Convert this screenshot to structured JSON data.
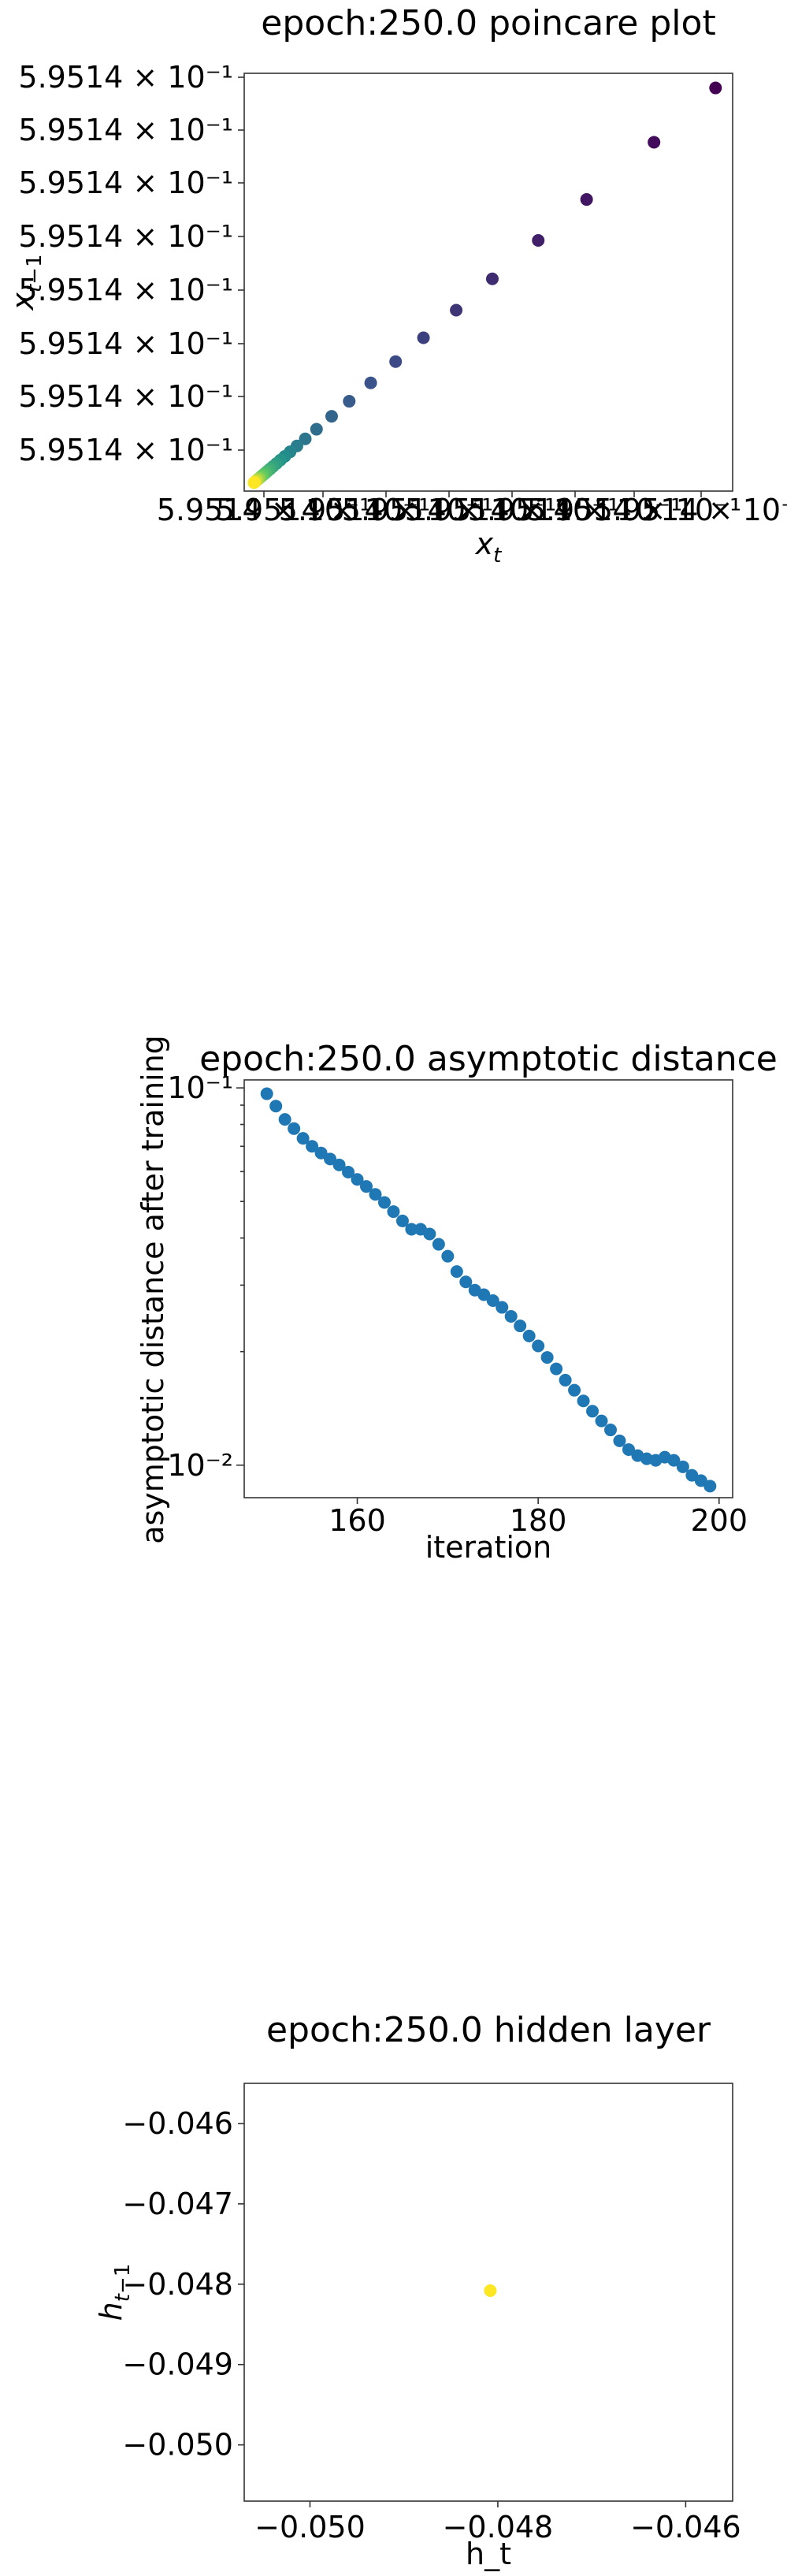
{
  "chart_data": [
    {
      "type": "scatter",
      "title": "epoch:250.0 poincare plot",
      "xlabel": "x_t",
      "ylabel": "x_{t-1}",
      "colormap": "viridis",
      "y_tick_labels": [
        "5.9514 × 10⁻¹",
        "5.9514 × 10⁻¹",
        "5.9514 × 10⁻¹",
        "5.9514 × 10⁻¹",
        "5.9514 × 10⁻¹",
        "5.9514 × 10⁻¹",
        "5.9514 × 10⁻¹",
        "5.9514 × 10⁻¹"
      ],
      "x_tick_labels": [
        "5.9514 × 10⁻¹",
        "5.9514 × 10⁻¹",
        "5.9514 × 10⁻¹",
        "5.9514 × 10⁻¹",
        "5.9514 × 10⁻¹",
        "5.9514 × 10⁻¹",
        "5.9514 × 10⁻¹",
        "5.9514 × 10⁻¹"
      ],
      "x_tick_unit": "× 10⁻¹",
      "xlim": [
        0,
        1
      ],
      "ylim": [
        0,
        1
      ],
      "points": [
        [
          0.965,
          0.965
        ],
        [
          0.839,
          0.835
        ],
        [
          0.701,
          0.698
        ],
        [
          0.602,
          0.6
        ],
        [
          0.508,
          0.508
        ],
        [
          0.434,
          0.433
        ],
        [
          0.367,
          0.367
        ],
        [
          0.31,
          0.31
        ],
        [
          0.259,
          0.259
        ],
        [
          0.215,
          0.215
        ],
        [
          0.179,
          0.179
        ],
        [
          0.148,
          0.148
        ],
        [
          0.125,
          0.125
        ],
        [
          0.108,
          0.108
        ],
        [
          0.094,
          0.094
        ],
        [
          0.083,
          0.083
        ],
        [
          0.074,
          0.074
        ],
        [
          0.066,
          0.066
        ],
        [
          0.059,
          0.059
        ],
        [
          0.053,
          0.053
        ],
        [
          0.048,
          0.048
        ],
        [
          0.044,
          0.044
        ],
        [
          0.04,
          0.04
        ],
        [
          0.037,
          0.037
        ],
        [
          0.034,
          0.034
        ],
        [
          0.031,
          0.031
        ],
        [
          0.029,
          0.029
        ],
        [
          0.027,
          0.027
        ],
        [
          0.025,
          0.025
        ],
        [
          0.023,
          0.023
        ],
        [
          0.021,
          0.021
        ],
        [
          0.02,
          0.02
        ]
      ]
    },
    {
      "type": "scatter",
      "title": "epoch:250.0 asymptotic distance",
      "xlabel": "iteration",
      "ylabel": "asymptotic distance after training",
      "y_scale": "log",
      "color": "#1f77b4",
      "xlim": [
        147.5,
        201.5
      ],
      "ylim": [
        0.0082,
        0.105
      ],
      "x_ticks": [
        160,
        180,
        200
      ],
      "x_tick_labels": [
        "160",
        "180",
        "200"
      ],
      "y_major_ticks": [
        0.01,
        0.1
      ],
      "y_major_tick_labels": [
        "10⁻²",
        "10⁻¹"
      ],
      "y_minor_ticks": [
        0.02,
        0.03,
        0.04,
        0.05,
        0.06,
        0.07,
        0.08,
        0.09
      ],
      "x": [
        150,
        151,
        152,
        153,
        154,
        155,
        156,
        157,
        158,
        159,
        160,
        161,
        162,
        163,
        164,
        165,
        166,
        167,
        168,
        169,
        170,
        171,
        172,
        173,
        174,
        175,
        176,
        177,
        178,
        179,
        180,
        181,
        182,
        183,
        184,
        185,
        186,
        187,
        188,
        189,
        190,
        191,
        192,
        193,
        194,
        195,
        196,
        197,
        198,
        199
      ],
      "y": [
        0.0965,
        0.0895,
        0.0825,
        0.078,
        0.0735,
        0.07,
        0.0672,
        0.0648,
        0.0625,
        0.0598,
        0.0572,
        0.0548,
        0.0522,
        0.0497,
        0.047,
        0.0444,
        0.0422,
        0.0422,
        0.041,
        0.0385,
        0.0358,
        0.0326,
        0.0306,
        0.0291,
        0.0283,
        0.0273,
        0.0262,
        0.0248,
        0.0234,
        0.022,
        0.0207,
        0.0193,
        0.018,
        0.0168,
        0.0158,
        0.0148,
        0.0139,
        0.0131,
        0.0124,
        0.0116,
        0.011,
        0.0106,
        0.0104,
        0.0103,
        0.0105,
        0.0103,
        0.0099,
        0.0094,
        0.0091,
        0.0088
      ]
    },
    {
      "type": "scatter",
      "title": "epoch:250.0 hidden layer",
      "xlabel": "h_t",
      "ylabel": "h_{t-1}",
      "color": "#fde725",
      "xlim": [
        -0.0507,
        -0.0455
      ],
      "ylim": [
        -0.0507,
        -0.0455
      ],
      "x_ticks": [
        -0.05,
        -0.048,
        -0.046
      ],
      "x_tick_labels": [
        "−0.050",
        "−0.048",
        "−0.046"
      ],
      "y_ticks": [
        -0.046,
        -0.047,
        -0.048,
        -0.049,
        -0.05
      ],
      "y_tick_labels": [
        "−0.046",
        "−0.047",
        "−0.048",
        "−0.049",
        "−0.050"
      ],
      "points": [
        [
          -0.04808,
          -0.04808
        ]
      ]
    }
  ]
}
